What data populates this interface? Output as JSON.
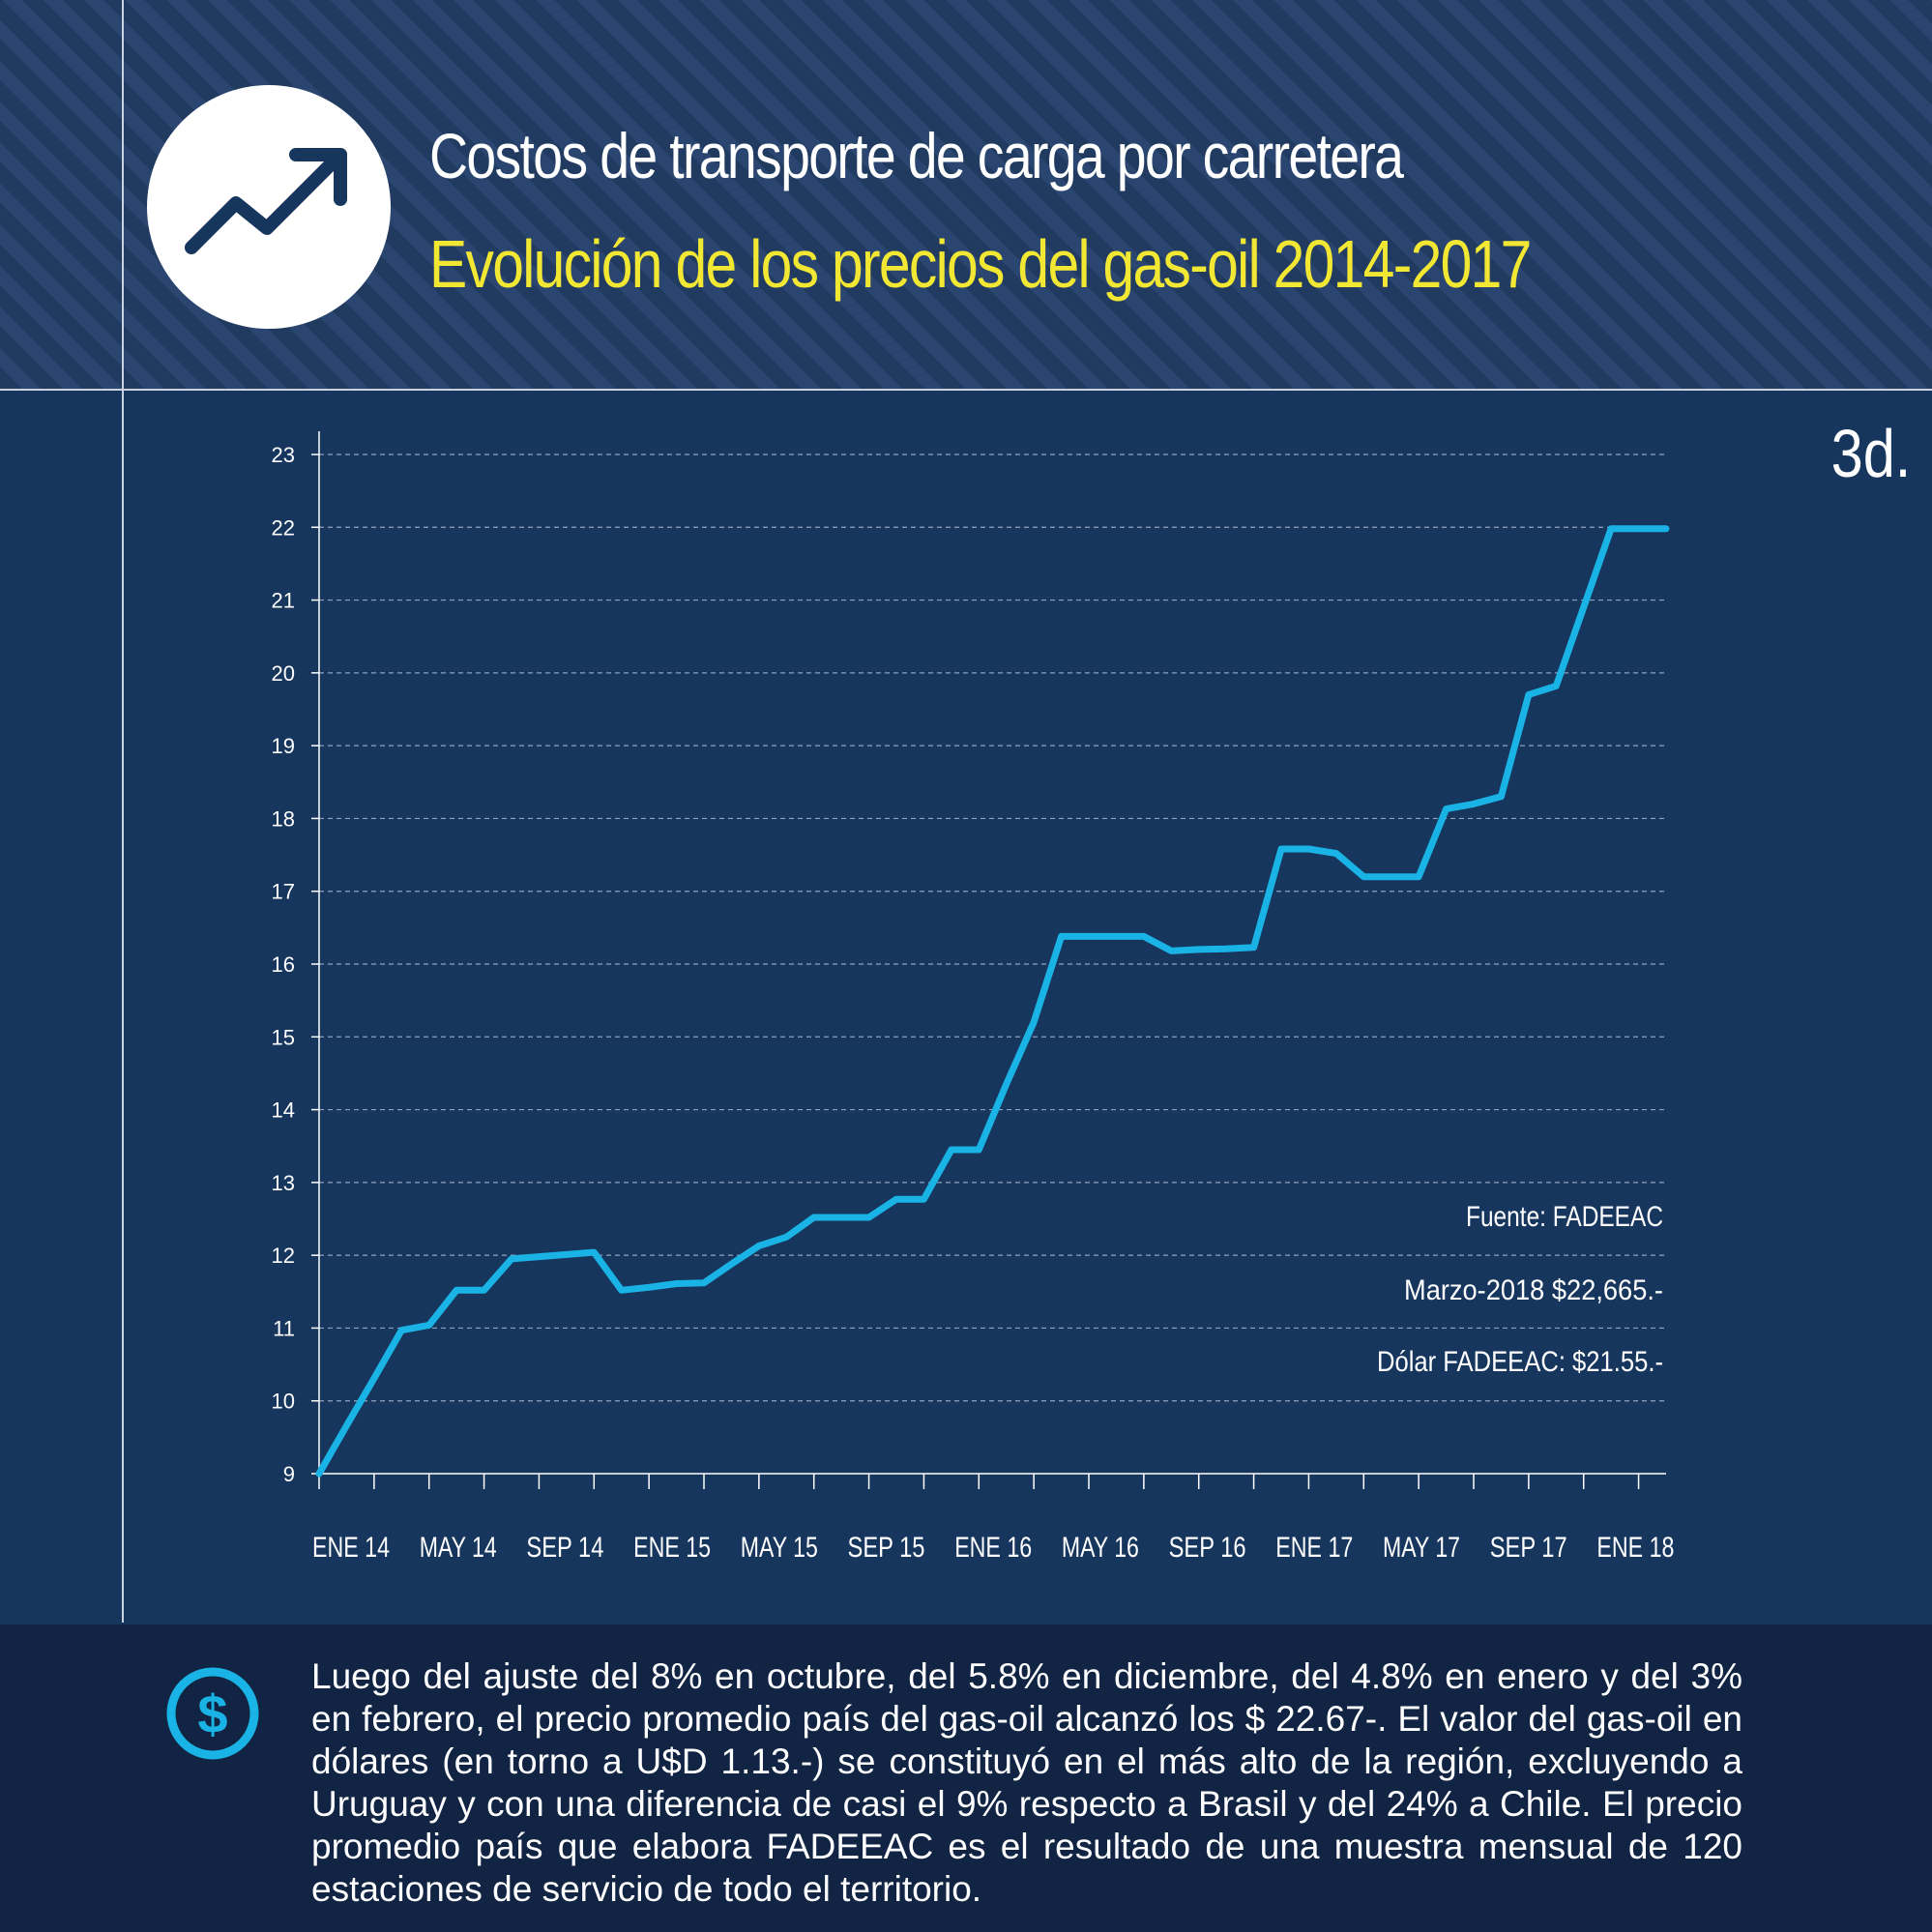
{
  "header": {
    "title": "Costos de transporte de carga por carretera",
    "subtitle": "Evolución de los precios del gas-oil 2014-2017",
    "panel_label": "3d.",
    "icon": "trending-up-icon"
  },
  "colors": {
    "background": "#17365e",
    "header_stripe": "#203a60",
    "footer": "#112444",
    "line": "#1ab3e6",
    "subtitle": "#f2e733",
    "text": "#ffffff"
  },
  "chart_data": {
    "type": "line",
    "title": "Evolución de los precios del gas-oil 2014-2017",
    "xlabel": "",
    "ylabel": "",
    "ylim": [
      9,
      23
    ],
    "yticks": [
      9,
      10,
      11,
      12,
      13,
      14,
      15,
      16,
      17,
      18,
      19,
      20,
      21,
      22,
      23
    ],
    "x_tick_labels": [
      "ENE 14",
      "MAY 14",
      "SEP 14",
      "ENE 15",
      "MAY 15",
      "SEP 15",
      "ENE 16",
      "MAY 16",
      "SEP 16",
      "ENE 17",
      "MAY 17",
      "SEP 17",
      "ENE 18"
    ],
    "grid": "horizontal dashed",
    "series": [
      {
        "months": [
          "Ene 14",
          "Feb 14",
          "Mar 14",
          "Abr 14",
          "May 14",
          "Jun 14",
          "Jul 14",
          "Ago 14",
          "Sep 14",
          "Oct 14",
          "Nov 14",
          "Dic 14",
          "Ene 15",
          "Feb 15",
          "Mar 15",
          "Abr 15",
          "May 15",
          "Jun 15",
          "Jul 15",
          "Ago 15",
          "Sep 15",
          "Oct 15",
          "Nov 15",
          "Dic 15",
          "Ene 16",
          "Feb 16",
          "Mar 16",
          "Abr 16",
          "May 16",
          "Jun 16",
          "Jul 16",
          "Ago 16",
          "Sep 16",
          "Oct 16",
          "Nov 16",
          "Dic 16",
          "Ene 17",
          "Feb 17",
          "Mar 17",
          "Abr 17",
          "May 17",
          "Jun 17",
          "Jul 17",
          "Ago 17",
          "Sep 17",
          "Oct 17",
          "Nov 17",
          "Dic 17",
          "Ene 18",
          "Feb 18"
        ],
        "values": [
          9.0,
          9.66,
          10.31,
          10.97,
          11.04,
          11.52,
          11.52,
          11.95,
          11.98,
          12.01,
          12.04,
          11.52,
          11.56,
          11.61,
          11.62,
          11.88,
          12.13,
          12.25,
          12.52,
          12.52,
          12.52,
          12.77,
          12.77,
          13.45,
          13.45,
          14.35,
          15.2,
          16.38,
          16.38,
          16.38,
          16.38,
          16.18,
          16.2,
          16.21,
          16.23,
          17.58,
          17.58,
          17.52,
          17.2,
          17.2,
          17.2,
          18.13,
          18.2,
          18.3,
          19.7,
          19.82,
          20.9,
          21.98,
          21.98,
          21.98
        ]
      }
    ],
    "annotations": [
      "Fuente: FADEEAC",
      "Marzo-2018 $22,665.-",
      "Dólar FADEEAC: $21.55.-"
    ]
  },
  "footer": {
    "icon": "dollar-icon",
    "text": "Luego del ajuste del 8% en octubre, del 5.8% en diciembre, del 4.8% en enero y del 3% en febrero, el precio promedio país del gas-oil alcanzó los $ 22.67-. El valor del gas-oil en dólares (en torno a U$D 1.13.-) se constituyó en el más alto de la región, excluyendo a Uruguay y con una diferencia de casi el 9% respecto a Brasil y del 24% a Chile. El precio promedio país que elabora FADEEAC es el resultado de una muestra mensual de 120 estaciones de servicio de todo el territorio."
  }
}
